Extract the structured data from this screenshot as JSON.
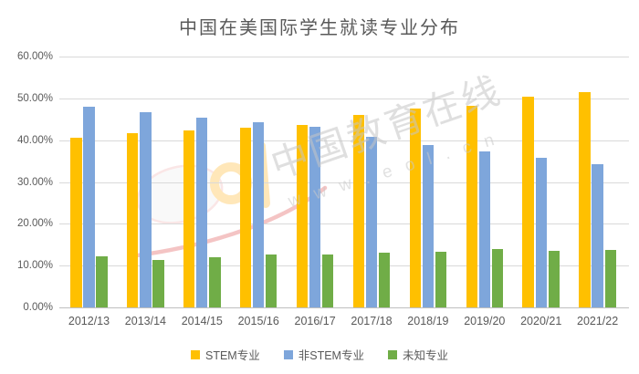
{
  "title": "中国在美国际学生就读专业分布",
  "watermark": {
    "line1": "中国教育在线",
    "line2": "w w w . e o l . c n",
    "logo": "eol-logo"
  },
  "chart_data": {
    "type": "bar",
    "title": "中国在美国际学生就读专业分布",
    "categories": [
      "2012/13",
      "2013/14",
      "2014/15",
      "2015/16",
      "2016/17",
      "2017/18",
      "2018/19",
      "2019/20",
      "2020/21",
      "2021/22"
    ],
    "series": [
      {
        "name": "STEM专业",
        "color": "#FFC000",
        "values": [
          40.5,
          41.6,
          42.4,
          42.9,
          43.6,
          46.0,
          47.6,
          48.3,
          50.3,
          51.5
        ]
      },
      {
        "name": "非STEM专业",
        "color": "#7EA6DB",
        "values": [
          48.0,
          46.6,
          45.3,
          44.4,
          43.3,
          40.8,
          38.9,
          37.4,
          35.8,
          34.3
        ]
      },
      {
        "name": "未知专业",
        "color": "#70AD47",
        "values": [
          12.3,
          11.4,
          12.1,
          12.7,
          12.7,
          13.1,
          13.3,
          13.9,
          13.6,
          13.8
        ]
      }
    ],
    "xlabel": "",
    "ylabel": "",
    "ylim": [
      0,
      60
    ],
    "y_ticks": [
      "0.00%",
      "10.00%",
      "20.00%",
      "30.00%",
      "40.00%",
      "50.00%",
      "60.00%"
    ],
    "grid": true,
    "legend_position": "bottom",
    "colors": {
      "grid": "#D9D9D9",
      "axis_text": "#595959",
      "title_text": "#595959",
      "background": "#FFFFFF",
      "watermark_text": "#C6C6C6"
    }
  }
}
